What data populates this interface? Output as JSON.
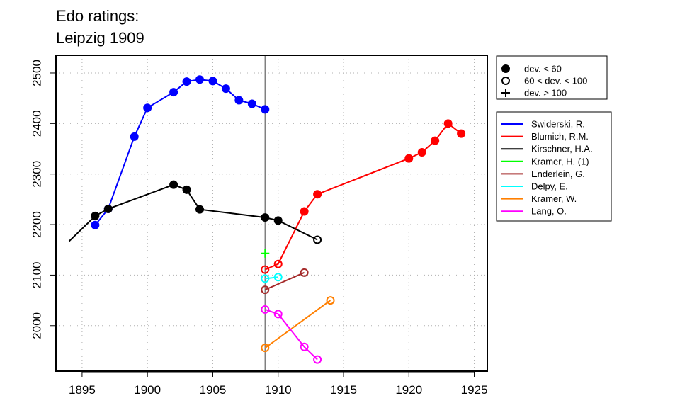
{
  "chart_data": {
    "type": "line",
    "title_lines": [
      "Edo ratings:",
      "Leipzig 1909"
    ],
    "xlabel": "",
    "ylabel": "",
    "xlim": [
      1893,
      1926
    ],
    "ylim": [
      1910,
      2535
    ],
    "x_ticks": [
      1895,
      1900,
      1905,
      1910,
      1915,
      1920,
      1925
    ],
    "y_ticks": [
      2000,
      2100,
      2200,
      2300,
      2400,
      2500
    ],
    "grid": true,
    "reference_line_x": 1909,
    "marker_legend": [
      {
        "label": "dev. < 60",
        "marker": "filled"
      },
      {
        "label": "60 < dev. < 100",
        "marker": "open"
      },
      {
        "label": "dev. > 100",
        "marker": "plus"
      }
    ],
    "series": [
      {
        "name": "Swiderski, R.",
        "color": "#0000ff",
        "points": [
          {
            "x": 1896,
            "y": 2199,
            "m": "filled"
          },
          {
            "x": 1897,
            "y": 2231,
            "m": "filled"
          },
          {
            "x": 1899,
            "y": 2374,
            "m": "filled"
          },
          {
            "x": 1900,
            "y": 2431,
            "m": "filled"
          },
          {
            "x": 1902,
            "y": 2462,
            "m": "filled"
          },
          {
            "x": 1903,
            "y": 2483,
            "m": "filled"
          },
          {
            "x": 1904,
            "y": 2487,
            "m": "filled"
          },
          {
            "x": 1905,
            "y": 2484,
            "m": "filled"
          },
          {
            "x": 1906,
            "y": 2469,
            "m": "filled"
          },
          {
            "x": 1907,
            "y": 2446,
            "m": "filled"
          },
          {
            "x": 1908,
            "y": 2439,
            "m": "filled"
          },
          {
            "x": 1909,
            "y": 2428,
            "m": "filled"
          }
        ]
      },
      {
        "name": "Blumich, R.M.",
        "color": "#ff0000",
        "points": [
          {
            "x": 1909,
            "y": 2111,
            "m": "open"
          },
          {
            "x": 1910,
            "y": 2122,
            "m": "open"
          },
          {
            "x": 1912,
            "y": 2226,
            "m": "filled"
          },
          {
            "x": 1913,
            "y": 2260,
            "m": "filled"
          },
          {
            "x": 1920,
            "y": 2331,
            "m": "filled"
          },
          {
            "x": 1921,
            "y": 2343,
            "m": "filled"
          },
          {
            "x": 1922,
            "y": 2366,
            "m": "filled"
          },
          {
            "x": 1923,
            "y": 2400,
            "m": "filled"
          },
          {
            "x": 1924,
            "y": 2380,
            "m": "filled"
          }
        ]
      },
      {
        "name": "Kirschner, H.A.",
        "color": "#000000",
        "points": [
          {
            "x": 1894,
            "y": 2167,
            "m": "none"
          },
          {
            "x": 1896,
            "y": 2217,
            "m": "filled"
          },
          {
            "x": 1897,
            "y": 2231,
            "m": "filled"
          },
          {
            "x": 1902,
            "y": 2279,
            "m": "filled"
          },
          {
            "x": 1903,
            "y": 2269,
            "m": "filled"
          },
          {
            "x": 1904,
            "y": 2230,
            "m": "filled"
          },
          {
            "x": 1909,
            "y": 2214,
            "m": "filled"
          },
          {
            "x": 1910,
            "y": 2208,
            "m": "filled"
          },
          {
            "x": 1913,
            "y": 2170,
            "m": "open"
          }
        ]
      },
      {
        "name": "Kramer, H. (1)",
        "color": "#00ff00",
        "points": [
          {
            "x": 1909,
            "y": 2143,
            "m": "plus"
          }
        ]
      },
      {
        "name": "Enderlein, G.",
        "color": "#a52a2a",
        "points": [
          {
            "x": 1909,
            "y": 2071,
            "m": "open"
          },
          {
            "x": 1912,
            "y": 2105,
            "m": "open"
          }
        ]
      },
      {
        "name": "Delpy, E.",
        "color": "#00ffff",
        "points": [
          {
            "x": 1909,
            "y": 2093,
            "m": "open"
          },
          {
            "x": 1910,
            "y": 2096,
            "m": "open"
          }
        ]
      },
      {
        "name": "Kramer, W.",
        "color": "#ff7f00",
        "points": [
          {
            "x": 1909,
            "y": 1956,
            "m": "open"
          },
          {
            "x": 1914,
            "y": 2050,
            "m": "open"
          }
        ]
      },
      {
        "name": "Lang, O.",
        "color": "#ff00ff",
        "points": [
          {
            "x": 1909,
            "y": 2032,
            "m": "open"
          },
          {
            "x": 1910,
            "y": 2023,
            "m": "open"
          },
          {
            "x": 1912,
            "y": 1958,
            "m": "open"
          },
          {
            "x": 1913,
            "y": 1933,
            "m": "open"
          }
        ]
      }
    ]
  }
}
